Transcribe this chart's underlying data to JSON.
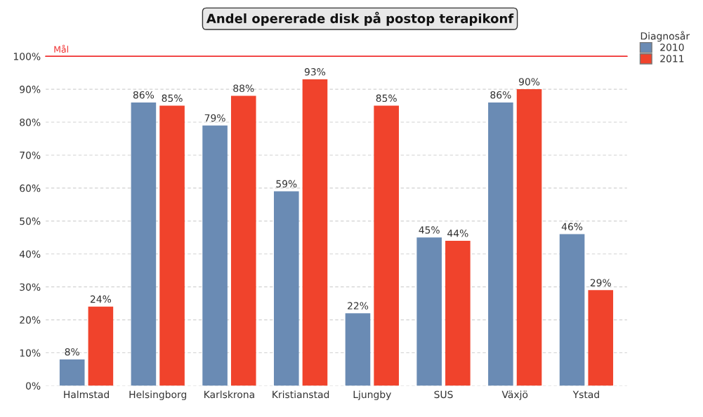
{
  "chart_data": {
    "type": "bar",
    "title": "Andel opererade disk på postop terapikonf",
    "legend_title": "Diagnosår",
    "categories": [
      "Halmstad",
      "Helsingborg",
      "Karlskrona",
      "Kristianstad",
      "Ljungby",
      "SUS",
      "Växjö",
      "Ystad"
    ],
    "series": [
      {
        "name": "2010",
        "color": "#6a8bb4",
        "values": [
          8,
          86,
          79,
          59,
          22,
          45,
          86,
          46
        ],
        "value_labels": [
          "8%",
          "86%",
          "79%",
          "59%",
          "22%",
          "45%",
          "86%",
          "46%"
        ]
      },
      {
        "name": "2011",
        "color": "#f0432c",
        "values": [
          24,
          85,
          88,
          93,
          85,
          44,
          90,
          29
        ],
        "value_labels": [
          "24%",
          "85%",
          "88%",
          "93%",
          "85%",
          "44%",
          "90%",
          "29%"
        ]
      }
    ],
    "ylim": [
      0,
      100
    ],
    "yticks": [
      {
        "value": 0,
        "label": "0%"
      },
      {
        "value": 10,
        "label": "10%"
      },
      {
        "value": 20,
        "label": "20%"
      },
      {
        "value": 30,
        "label": "30%"
      },
      {
        "value": 40,
        "label": "40%"
      },
      {
        "value": 50,
        "label": "50%"
      },
      {
        "value": 60,
        "label": "60%"
      },
      {
        "value": 70,
        "label": "70%"
      },
      {
        "value": 80,
        "label": "80%"
      },
      {
        "value": 90,
        "label": "90%"
      },
      {
        "value": 100,
        "label": "100%"
      }
    ],
    "grid": "y",
    "legend": "top right",
    "ref_lines": [
      {
        "axis": "y",
        "value": 100,
        "label": "Mål",
        "color": "#f03030"
      }
    ]
  }
}
